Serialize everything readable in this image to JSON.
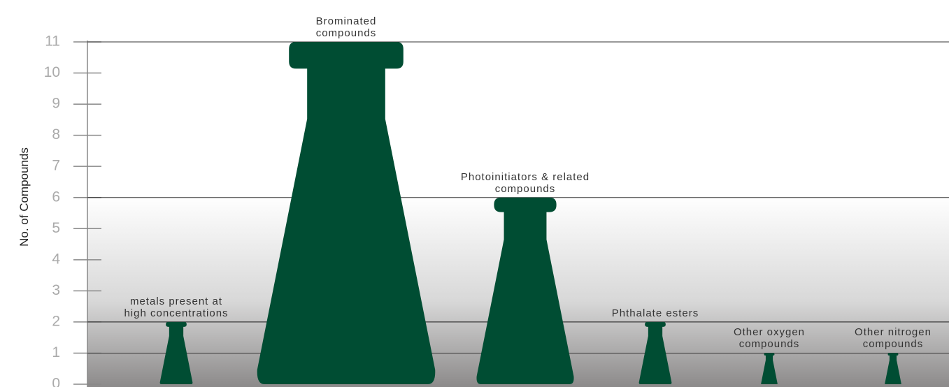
{
  "chart_data": {
    "type": "bar",
    "y_label": "No. of Compounds",
    "categories": [
      "metals present at high concentrations",
      "Brominated compounds",
      "Photoinitiators & related compounds",
      "Phthalate esters",
      "Other oxygen compounds",
      "Other nitrogen compounds"
    ],
    "values": [
      2,
      11,
      6,
      2,
      1,
      1
    ],
    "color": "#004d33",
    "ylim": [
      0,
      11
    ],
    "yticks": [
      0,
      1,
      2,
      3,
      4,
      5,
      6,
      7,
      8,
      9,
      10,
      11
    ]
  }
}
